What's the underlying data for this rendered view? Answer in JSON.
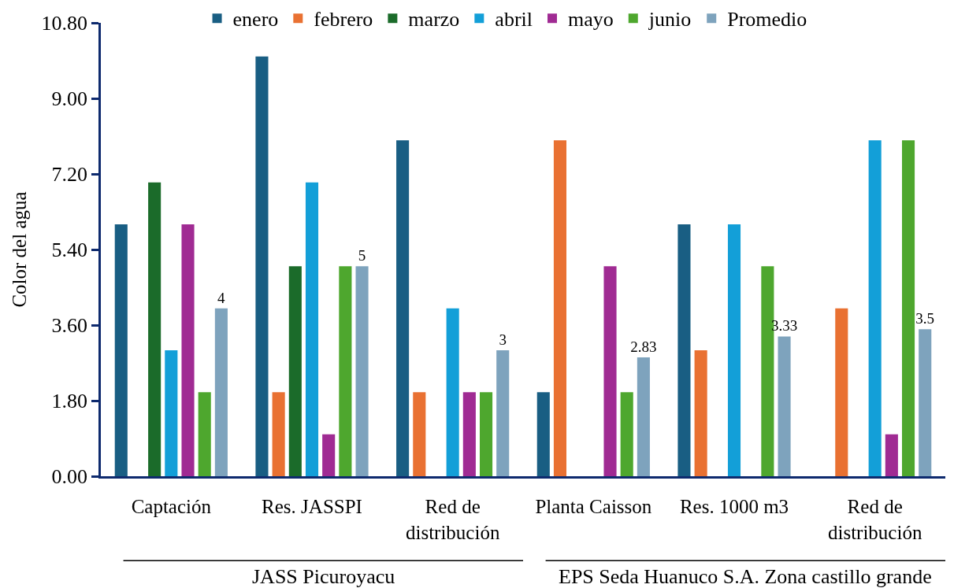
{
  "chart_data": {
    "type": "bar",
    "ylabel": "Color del agua",
    "categories": [
      "Captación",
      "Res. JASSPI",
      "Red de distribución",
      "Planta Caisson",
      "Res. 1000 m3",
      "Red de distribución"
    ],
    "series": [
      {
        "name": "enero",
        "color": "#195e83",
        "values": [
          6,
          10,
          8,
          2,
          6,
          0
        ]
      },
      {
        "name": "febrero",
        "color": "#e97132",
        "values": [
          0,
          2,
          2,
          8,
          3,
          4
        ]
      },
      {
        "name": "marzo",
        "color": "#1b6b2a",
        "values": [
          7,
          5,
          0,
          0,
          0,
          0
        ]
      },
      {
        "name": "abril",
        "color": "#139fd8",
        "values": [
          3,
          7,
          4,
          0,
          6,
          8
        ]
      },
      {
        "name": "mayo",
        "color": "#a02b93",
        "values": [
          6,
          1,
          2,
          5,
          0,
          1
        ]
      },
      {
        "name": "junio",
        "color": "#4ea72e",
        "values": [
          2,
          5,
          2,
          2,
          5,
          8
        ]
      },
      {
        "name": "Promedio",
        "color": "#7ea3bd",
        "values": [
          4,
          5,
          3,
          2.83,
          3.33,
          3.5
        ],
        "value_labels": [
          "4",
          "5",
          "3",
          "2.83",
          "3.33",
          "3.5"
        ]
      }
    ],
    "ylim": [
      0,
      10.8
    ],
    "yticks": [
      {
        "value": 0,
        "label": "0.00"
      },
      {
        "value": 1.8,
        "label": "1.80"
      },
      {
        "value": 3.6,
        "label": "3.60"
      },
      {
        "value": 5.4,
        "label": "5.40"
      },
      {
        "value": 7.2,
        "label": "7.20"
      },
      {
        "value": 9,
        "label": "9.00"
      },
      {
        "value": 10.8,
        "label": "10.80"
      }
    ],
    "annotations": [
      "JASS Picuroyacu",
      "EPS Seda Huanuco S.A. Zona castillo grande"
    ],
    "legend": "top"
  }
}
